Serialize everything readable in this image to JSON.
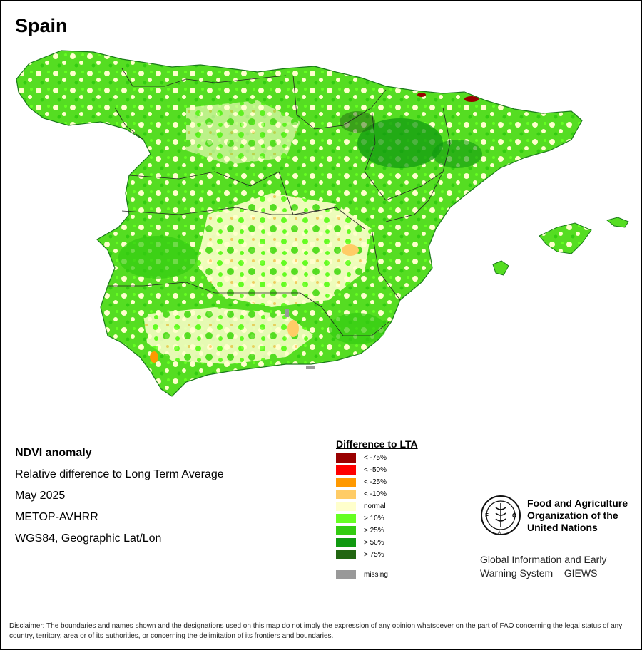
{
  "title": "Spain",
  "info": {
    "lines": [
      "NDVI anomaly",
      "Relative difference to Long Term Average",
      "May 2025",
      "METOP-AVHRR",
      "WGS84, Geographic Lat/Lon"
    ]
  },
  "legend": {
    "title": "Difference to LTA",
    "items": [
      {
        "label": "< -75%",
        "color": "#990000"
      },
      {
        "label": "< -50%",
        "color": "#ff0000"
      },
      {
        "label": "< -25%",
        "color": "#ff9900"
      },
      {
        "label": "< -10%",
        "color": "#ffcc66"
      },
      {
        "label": "normal",
        "color": "#ffffcc"
      },
      {
        "label": "> 10%",
        "color": "#66ff22"
      },
      {
        "label": "> 25%",
        "color": "#33cc11"
      },
      {
        "label": "> 50%",
        "color": "#119911"
      },
      {
        "label": "> 75%",
        "color": "#226611"
      }
    ],
    "missing": {
      "label": "missing",
      "color": "#999999"
    }
  },
  "fao": {
    "name_line1": "Food and Agriculture",
    "name_line2": "Organization of the",
    "name_line3": "United Nations",
    "giews_line1": "Global Information and Early",
    "giews_line2": "Warning System – GIEWS",
    "logo_letters": "F A O",
    "logo_motto": "FIAT PANIS"
  },
  "disclaimer": "Disclaimer: The boundaries and names shown and the designations used on this map do not imply the expression of any opinion whatsoever on the part of FAO concerning the legal status of any country, territory, area or of its authorities, or concerning the delimitation of its frontiers and boundaries."
}
